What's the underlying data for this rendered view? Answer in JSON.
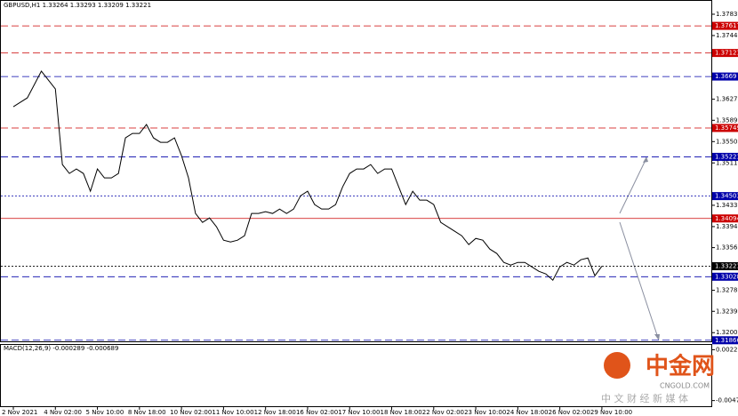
{
  "header": "GBPUSD,H1  1.33264 1.33293 1.33209 1.33221",
  "chart_data": {
    "type": "line",
    "categories": [
      "2 Nov 2021",
      null,
      null,
      null,
      null,
      null,
      "4 Nov 02:00",
      null,
      null,
      null,
      null,
      null,
      "5 Nov 10:00",
      null,
      null,
      null,
      null,
      null,
      "8 Nov 18:00",
      null,
      null,
      null,
      null,
      null,
      "10 Nov 02:00",
      null,
      null,
      null,
      null,
      null,
      "11 Nov 10:00",
      null,
      null,
      null,
      null,
      null,
      "12 Nov 18:00",
      null,
      null,
      null,
      null,
      null,
      "16 Nov 02:00",
      null,
      null,
      null,
      null,
      null,
      "17 Nov 10:00",
      null,
      null,
      null,
      null,
      null,
      "18 Nov 18:00",
      null,
      null,
      null,
      null,
      null,
      "22 Nov 02:00",
      null,
      null,
      null,
      null,
      null,
      "23 Nov 10:00",
      null,
      null,
      null,
      null,
      null,
      "24 Nov 18:00",
      null,
      null,
      null,
      null,
      null,
      "26 Nov 02:00",
      null,
      null,
      null,
      null,
      null,
      "29 Nov 10:00"
    ],
    "series": [
      {
        "color": "#000000",
        "values": [
          1.36138,
          1.36219,
          1.363,
          1.36544,
          1.36788,
          1.36626,
          1.36463,
          1.3508,
          1.34917,
          1.34999,
          1.34917,
          1.34592,
          1.34999,
          1.34836,
          1.34836,
          1.34917,
          1.35568,
          1.35649,
          1.35649,
          1.35812,
          1.35568,
          1.35487,
          1.35487,
          1.35568,
          1.35243,
          1.34836,
          1.34185,
          1.34022,
          1.34104,
          1.33941,
          1.33697,
          1.33664,
          1.33697,
          1.33778,
          1.34185,
          1.34185,
          1.34218,
          1.34185,
          1.34266,
          1.34185,
          1.34266,
          1.3451,
          1.34592,
          1.34348,
          1.34266,
          1.34266,
          1.34348,
          1.34673,
          1.34917,
          1.34999,
          1.34999,
          1.3508,
          1.34917,
          1.34999,
          1.34999,
          1.34673,
          1.34348,
          1.34592,
          1.34429,
          1.34429,
          1.34348,
          1.34022,
          1.33941,
          1.3386,
          1.33778,
          1.33616,
          1.33729,
          1.33697,
          1.33534,
          1.33453,
          1.3329,
          1.33241,
          1.3329,
          1.3329,
          1.33209,
          1.33127,
          1.33079,
          1.32965,
          1.33209,
          1.3329,
          1.33241,
          1.33339,
          1.33371,
          1.33046,
          1.33221
        ]
      }
    ],
    "ylim": [
      1.3183,
      1.3809
    ],
    "yticks": [
      {
        "value": 1.3783,
        "label": "1.37830"
      },
      {
        "value": 1.3744,
        "label": "1.37440"
      },
      1.36275,
      {
        "value": 1.3589,
        "label": "1.35890"
      },
      {
        "value": 1.355,
        "label": "1.35500"
      },
      {
        "value": 1.3511,
        "label": "1.35110"
      },
      1.34335,
      1.33945,
      {
        "value": 1.3356,
        "label": "1.33560"
      },
      {
        "value": 1.3278,
        "label": "1.32780"
      },
      1.32395,
      1.32005
    ],
    "levels": [
      {
        "value": 1.37617,
        "color": "#cc0000",
        "style": "dashed"
      },
      {
        "value": 1.37121,
        "color": "#cc0000",
        "style": "dashed"
      },
      {
        "value": 1.3669,
        "color": "#0000aa",
        "style": "dashed"
      },
      {
        "value": 1.35749,
        "color": "#cc0000",
        "style": "dashed"
      },
      {
        "value": 1.35221,
        "color": "#0000aa",
        "style": "dashed"
      },
      {
        "value": 1.34503,
        "color": "#0000aa",
        "style": "dotted"
      },
      {
        "value": 1.34094,
        "color": "#cc0000",
        "style": "solid"
      },
      {
        "value": 1.33221,
        "color": "#000000",
        "style": "dotted"
      },
      {
        "value": 1.33028,
        "color": "#0000aa",
        "style": "dashed"
      },
      {
        "value": 1.31866,
        "color": "#0000aa",
        "style": "dashed"
      }
    ]
  },
  "macd": {
    "title": "MACD(12,26,9) -0.000289 -0.000689",
    "ylim": [
      -0.0055,
      0.00292
    ],
    "yticks": [
      0.002258,
      -0.004723
    ]
  },
  "logo": {
    "name": "中金网",
    "domain": "CNGOLD.COM",
    "tagline": "中 文 财 经 新 媒 体"
  }
}
